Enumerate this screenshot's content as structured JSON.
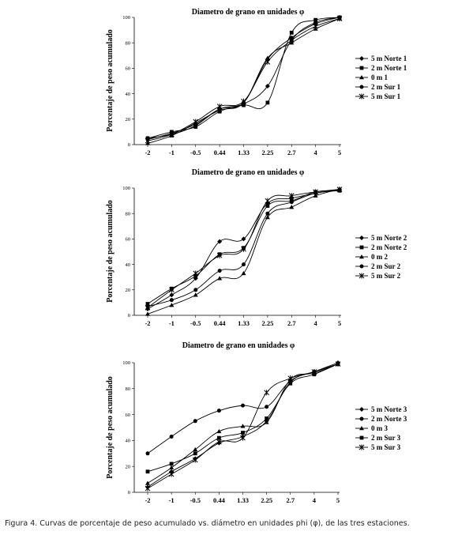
{
  "caption": "Figura 4. Curvas de porcentaje de peso acumulado vs. diámetro en unidades phi (φ), de las tres estaciones.",
  "chart_data": [
    {
      "type": "line",
      "title": "Diametro de grano en unidades φ",
      "xlabel": "",
      "ylabel": "Porcentaje de peso acumulado",
      "categories": [
        "-2",
        "-1",
        "-0.5",
        "0.44",
        "1.33",
        "2.25",
        "2.7",
        "4",
        "5"
      ],
      "ylim": [
        0,
        100
      ],
      "yticks": [
        0,
        20,
        40,
        60,
        80,
        100
      ],
      "legend_position": "right",
      "series": [
        {
          "name": "5 m Norte 1",
          "marker": "diamond",
          "values": [
            5,
            8,
            15,
            28,
            32,
            46,
            82,
            96,
            100
          ]
        },
        {
          "name": "2 m Norte 1",
          "marker": "square",
          "values": [
            5,
            10,
            14,
            26,
            31,
            33,
            88,
            98,
            100
          ]
        },
        {
          "name": "0 m 1",
          "marker": "triangle",
          "values": [
            1,
            7,
            17,
            27,
            33,
            68,
            80,
            91,
            99
          ]
        },
        {
          "name": "2 m Sur 1",
          "marker": "circle",
          "values": [
            4,
            9,
            16,
            28,
            33,
            67,
            84,
            95,
            100
          ]
        },
        {
          "name": "5 m Sur 1",
          "marker": "star",
          "values": [
            3,
            8,
            18,
            30,
            34,
            65,
            82,
            93,
            99
          ]
        }
      ]
    },
    {
      "type": "line",
      "title": "Diametro de grano en unidades φ",
      "xlabel": "",
      "ylabel": "Porcentaje de peso acumulado",
      "categories": [
        "-2",
        "-1",
        "-0.5",
        "0.44",
        "1.33",
        "2.25",
        "2.7",
        "4",
        "5"
      ],
      "ylim": [
        0,
        100
      ],
      "yticks": [
        0,
        20,
        40,
        60,
        80,
        100
      ],
      "legend_position": "right",
      "series": [
        {
          "name": "5 m Norte 2",
          "marker": "diamond",
          "values": [
            5,
            16,
            29,
            58,
            60,
            88,
            92,
            96,
            99
          ]
        },
        {
          "name": "2 m Norte 2",
          "marker": "square",
          "values": [
            9,
            21,
            31,
            48,
            53,
            86,
            90,
            97,
            98
          ]
        },
        {
          "name": "0 m 2",
          "marker": "triangle",
          "values": [
            1,
            8,
            16,
            29,
            33,
            77,
            85,
            94,
            99
          ]
        },
        {
          "name": "2 m Sur 2",
          "marker": "circle",
          "values": [
            7,
            12,
            20,
            35,
            40,
            80,
            89,
            96,
            98
          ]
        },
        {
          "name": "5 m Sur 2",
          "marker": "star",
          "values": [
            6,
            20,
            33,
            47,
            52,
            90,
            94,
            97,
            99
          ]
        }
      ]
    },
    {
      "type": "line",
      "title": "Diametro de grano en unidades φ",
      "xlabel": "",
      "ylabel": "Porcentaje de peso acumulado",
      "categories": [
        "-2",
        "-1",
        "-0.5",
        "0.44",
        "1.33",
        "2.25",
        "2.7",
        "4",
        "5"
      ],
      "ylim": [
        0,
        100
      ],
      "yticks": [
        0,
        20,
        40,
        60,
        80,
        100
      ],
      "legend_position": "right",
      "series": [
        {
          "name": "5 m Norte 3",
          "marker": "diamond",
          "values": [
            4,
            16,
            26,
            38,
            43,
            55,
            85,
            93,
            100
          ]
        },
        {
          "name": "2 m Norte 3",
          "marker": "circle",
          "values": [
            30,
            43,
            55,
            63,
            67,
            66,
            86,
            93,
            99
          ]
        },
        {
          "name": "0 m 3",
          "marker": "triangle",
          "values": [
            7,
            19,
            33,
            47,
            51,
            54,
            87,
            92,
            99
          ]
        },
        {
          "name": "2 m Sur 3",
          "marker": "square",
          "values": [
            16,
            22,
            30,
            42,
            46,
            57,
            84,
            91,
            99
          ]
        },
        {
          "name": "5 m Sur 3",
          "marker": "star",
          "values": [
            3,
            14,
            25,
            39,
            42,
            77,
            88,
            93,
            99
          ]
        }
      ]
    }
  ]
}
